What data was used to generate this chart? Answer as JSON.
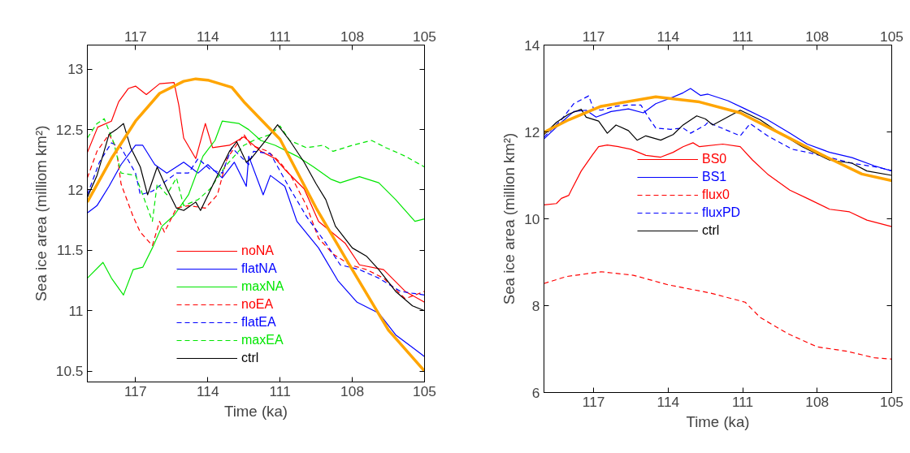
{
  "chart_data": [
    {
      "type": "line",
      "xlabel": "Time (ka)",
      "ylabel": "Sea ice area (milliom km²)",
      "xlim": [
        119,
        105
      ],
      "xticks": [
        117,
        114,
        111,
        108,
        105
      ],
      "x2lim": [
        119,
        105
      ],
      "x2ticks": [
        117,
        114,
        111,
        108,
        105
      ],
      "ylim": [
        10.41,
        13.2
      ],
      "yticks": [
        10.5,
        11.0,
        11.5,
        12.0,
        12.5,
        13.0
      ],
      "legend": "bottom",
      "grid": false,
      "series": [
        {
          "name": "noNA",
          "color": "#ff0000",
          "line_style": "solid",
          "x": [
            119,
            118.57,
            118,
            117.7,
            117.3,
            117,
            116.55,
            116,
            115.4,
            115.2,
            115,
            114.5,
            114.1,
            113.8,
            113.1,
            112.5,
            111.8,
            111.2,
            110.8,
            110,
            109.4,
            108.3,
            107.7,
            106.7,
            105.8,
            105
          ],
          "values": [
            12.31,
            12.52,
            12.57,
            12.73,
            12.84,
            12.86,
            12.79,
            12.88,
            12.89,
            12.7,
            12.43,
            12.26,
            12.55,
            12.35,
            12.37,
            12.44,
            12.32,
            12.26,
            12.17,
            12.01,
            11.74,
            11.56,
            11.38,
            11.34,
            11.16,
            11.07
          ]
        },
        {
          "name": "flatNA",
          "color": "#0000ff",
          "line_style": "solid",
          "x": [
            119,
            118.6,
            118.1,
            117.6,
            117,
            116.7,
            116.2,
            115.7,
            115,
            114.4,
            114,
            113.4,
            112.9,
            112.4,
            112.3,
            111.7,
            111.4,
            110.8,
            110.3,
            109.4,
            108.6,
            107.8,
            106.9,
            106.2,
            105
          ],
          "values": [
            11.81,
            11.87,
            12.03,
            12.21,
            12.37,
            12.37,
            12.21,
            12.14,
            12.23,
            12.14,
            12.21,
            12.1,
            12.23,
            12.03,
            12.28,
            11.96,
            12.12,
            12.03,
            11.74,
            11.52,
            11.25,
            11.07,
            10.98,
            10.8,
            10.62
          ]
        },
        {
          "name": "maxNA",
          "color": "#00e600",
          "line_style": "solid",
          "x": [
            119,
            118.35,
            118,
            117.5,
            117.1,
            116.7,
            116.3,
            115.9,
            115.4,
            114.8,
            114.2,
            113.7,
            113.4,
            112.7,
            112.3,
            111.8,
            111.2,
            110.3,
            109.6,
            108.9,
            108.5,
            107.7,
            106.9,
            106.2,
            105.4,
            105
          ],
          "values": [
            11.27,
            11.4,
            11.27,
            11.13,
            11.34,
            11.36,
            11.52,
            11.7,
            11.79,
            11.96,
            12.28,
            12.41,
            12.57,
            12.55,
            12.5,
            12.41,
            12.37,
            12.28,
            12.19,
            12.09,
            12.06,
            12.11,
            12.06,
            11.92,
            11.74,
            11.76
          ]
        },
        {
          "name": "noEA",
          "color": "#ff0000",
          "line_style": "dashed",
          "x": [
            119,
            118.6,
            118.1,
            117.8,
            117.6,
            117.1,
            116.8,
            116.3,
            116,
            115.8,
            115.3,
            114.8,
            114.1,
            113.6,
            113.2,
            112.5,
            112.2,
            111.5,
            111,
            110.5,
            109.9,
            109.4,
            108.8,
            108.1,
            107.4,
            106.7,
            105.8,
            105
          ],
          "values": [
            12.1,
            12.32,
            12.46,
            12.35,
            12.05,
            11.78,
            11.65,
            11.54,
            11.74,
            11.65,
            11.85,
            11.87,
            11.85,
            11.96,
            12.26,
            12.46,
            12.37,
            12.32,
            12.23,
            12.1,
            11.87,
            11.6,
            11.47,
            11.38,
            11.34,
            11.27,
            11.1,
            11.16
          ]
        },
        {
          "name": "flatEA",
          "color": "#0000ff",
          "line_style": "dashed",
          "x": [
            119,
            118.5,
            118,
            117.6,
            117,
            116.8,
            116.3,
            115.9,
            115.3,
            114.8,
            114.4,
            113.9,
            113.4,
            113,
            112.3,
            112.1,
            111.4,
            110.7,
            109.9,
            109.1,
            108.5,
            107.7,
            106.9,
            106,
            105
          ],
          "values": [
            11.96,
            12.23,
            12.39,
            12.35,
            12.14,
            11.96,
            11.99,
            12.05,
            12.14,
            12.14,
            12.26,
            12.17,
            12.14,
            12.35,
            12.21,
            12.32,
            12.3,
            12.05,
            11.78,
            11.56,
            11.38,
            11.34,
            11.27,
            11.16,
            11.13
          ]
        },
        {
          "name": "maxEA",
          "color": "#00e600",
          "line_style": "dashed",
          "x": [
            119,
            118.6,
            118.3,
            117.9,
            117.6,
            117,
            116.7,
            116.3,
            116.1,
            115.7,
            115.3,
            115,
            114.4,
            113.9,
            113.3,
            112.5,
            112.1,
            111.4,
            111,
            110.6,
            109.9,
            109.2,
            108.8,
            108,
            107.2,
            106.6,
            105.8,
            105
          ],
          "values": [
            12.43,
            12.55,
            12.59,
            12.39,
            12.14,
            12.12,
            11.96,
            11.74,
            12.05,
            11.96,
            12.1,
            11.87,
            11.92,
            12.01,
            12.19,
            12.37,
            12.41,
            12.46,
            12.53,
            12.41,
            12.35,
            12.37,
            12.32,
            12.37,
            12.41,
            12.35,
            12.28,
            12.19
          ]
        },
        {
          "name": "ctrl",
          "color": "#000000",
          "line_style": "solid",
          "x": [
            119,
            118.6,
            118.1,
            117.8,
            117.5,
            117.2,
            116.8,
            116.5,
            116.1,
            115.7,
            115.3,
            115,
            114.5,
            114.3,
            113.6,
            113.1,
            112.8,
            112.4,
            112.2,
            111.6,
            111.1,
            110.6,
            110,
            109.5,
            109.1,
            108.7,
            108,
            107.4,
            106.9,
            106.2,
            105.5,
            105
          ],
          "values": [
            11.94,
            12.12,
            12.46,
            12.5,
            12.55,
            12.35,
            12.19,
            11.96,
            12.19,
            12.01,
            11.85,
            11.83,
            11.9,
            11.83,
            12.12,
            12.32,
            12.4,
            12.23,
            12.26,
            12.41,
            12.54,
            12.41,
            12.23,
            12.05,
            11.92,
            11.7,
            11.52,
            11.45,
            11.34,
            11.16,
            11.04,
            11.0
          ]
        },
        {
          "color": "#ffa500",
          "line_style": "solid",
          "x": [
            119,
            118,
            117,
            116,
            115,
            114.5,
            114,
            113,
            112.5,
            111,
            109.5,
            108,
            106.5,
            105
          ],
          "values": [
            11.9,
            12.26,
            12.57,
            12.8,
            12.9,
            12.92,
            12.91,
            12.85,
            12.73,
            12.42,
            11.85,
            11.34,
            10.84,
            10.5
          ]
        }
      ]
    },
    {
      "type": "line",
      "xlabel": "Time (ka)",
      "ylabel": "Sea ice area (million km²)",
      "xlim": [
        119,
        105
      ],
      "xticks": [
        117,
        114,
        111,
        108,
        105
      ],
      "x2lim": [
        119,
        105
      ],
      "x2ticks": [
        117,
        114,
        111,
        108,
        105
      ],
      "ylim": [
        6,
        14
      ],
      "yticks": [
        6,
        8,
        10,
        12,
        14
      ],
      "legend": "center",
      "grid": false,
      "series": [
        {
          "name": "BS0",
          "color": "#ff0000",
          "line_style": "solid",
          "x": [
            119,
            118.5,
            118.3,
            118,
            117.9,
            117.5,
            117.05,
            116.8,
            116.45,
            116,
            115.5,
            114.9,
            114.3,
            113.8,
            113.4,
            113,
            112.74,
            111.8,
            111.1,
            110.6,
            110,
            109.1,
            108.4,
            107.5,
            106.7,
            106,
            105
          ],
          "values": [
            10.32,
            10.35,
            10.47,
            10.54,
            10.66,
            11.1,
            11.47,
            11.66,
            11.7,
            11.66,
            11.6,
            11.46,
            11.42,
            11.53,
            11.66,
            11.75,
            11.66,
            11.72,
            11.66,
            11.35,
            11.03,
            10.66,
            10.47,
            10.22,
            10.16,
            9.97,
            9.82
          ]
        },
        {
          "name": "BS1",
          "color": "#0000ff",
          "line_style": "solid",
          "x": [
            119,
            118.3,
            117.8,
            117.3,
            116.9,
            116.3,
            115.6,
            115,
            114.5,
            113.9,
            113.4,
            113.1,
            112.7,
            112.4,
            111.6,
            110.9,
            110,
            109.1,
            108.4,
            107.5,
            106.6,
            105.7,
            105
          ],
          "values": [
            11.84,
            12.22,
            12.47,
            12.5,
            12.34,
            12.47,
            12.53,
            12.44,
            12.65,
            12.78,
            12.9,
            13.0,
            12.84,
            12.87,
            12.72,
            12.53,
            12.28,
            11.97,
            11.72,
            11.53,
            11.41,
            11.22,
            11.1
          ]
        },
        {
          "name": "flux0",
          "color": "#ff0000",
          "line_style": "dashed",
          "x": [
            119,
            118.1,
            116.7,
            115.4,
            114,
            112.3,
            110.9,
            110.3,
            109.2,
            108,
            106.8,
            105.7,
            105
          ],
          "values": [
            8.51,
            8.67,
            8.78,
            8.7,
            8.48,
            8.29,
            8.08,
            7.73,
            7.36,
            7.05,
            6.95,
            6.8,
            6.77
          ]
        },
        {
          "name": "fluxPD",
          "color": "#0000ff",
          "line_style": "dashed",
          "x": [
            119,
            118.3,
            117.8,
            117.2,
            117,
            116.7,
            116.1,
            115.6,
            115.1,
            114.8,
            114.5,
            113.9,
            113.4,
            113.1,
            112.5,
            112.4,
            111.6,
            111.1,
            110.7,
            110,
            109,
            108.4,
            107.5,
            106.6,
            105.6,
            105
          ],
          "values": [
            11.88,
            12.28,
            12.65,
            12.83,
            12.53,
            12.5,
            12.59,
            12.62,
            12.62,
            12.34,
            12.09,
            12.06,
            12.09,
            11.97,
            12.16,
            12.22,
            12.03,
            11.91,
            12.19,
            11.91,
            11.6,
            11.53,
            11.41,
            11.28,
            11.19,
            11.11
          ]
        },
        {
          "name": "ctrl",
          "color": "#000000",
          "line_style": "solid",
          "x": [
            119,
            118.5,
            118,
            117.5,
            117.3,
            116.8,
            116.45,
            116.1,
            115.6,
            115.25,
            114.9,
            114.3,
            113.8,
            113.4,
            112.85,
            112.5,
            112.2,
            111.1,
            110.3,
            109.5,
            108.6,
            107.5,
            106.6,
            106,
            105
          ],
          "values": [
            11.94,
            12.22,
            12.41,
            12.52,
            12.34,
            12.25,
            11.97,
            12.16,
            12.03,
            11.81,
            11.91,
            11.81,
            11.94,
            12.16,
            12.37,
            12.3,
            12.16,
            12.5,
            12.28,
            11.97,
            11.66,
            11.35,
            11.28,
            11.1,
            11.0
          ]
        },
        {
          "color": "#ffa500",
          "line_style": "solid",
          "x": [
            119,
            118,
            116.7,
            114.5,
            112.74,
            111.1,
            109.5,
            107.8,
            106.2,
            105
          ],
          "values": [
            11.99,
            12.28,
            12.59,
            12.81,
            12.69,
            12.44,
            11.97,
            11.47,
            11.03,
            10.88
          ]
        }
      ]
    }
  ]
}
